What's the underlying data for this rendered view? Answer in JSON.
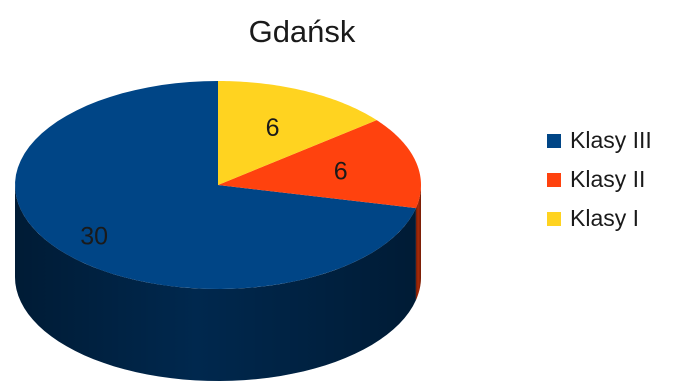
{
  "chart_data": {
    "type": "pie",
    "title": "Gdańsk",
    "categories": [
      "Klasy III",
      "Klasy II",
      "Klasy I"
    ],
    "values": [
      30,
      6,
      6
    ],
    "data_labels": [
      "30",
      "6",
      "6"
    ],
    "colors": [
      "#004586",
      "#ff420e",
      "#ffd320"
    ],
    "side_colors": [
      "#002a52",
      "#b32c08",
      "#b39412"
    ],
    "legend": {
      "entries": [
        "Klasy III",
        "Klasy II",
        "Klasy I"
      ],
      "placement": "right"
    },
    "style": "3d"
  }
}
